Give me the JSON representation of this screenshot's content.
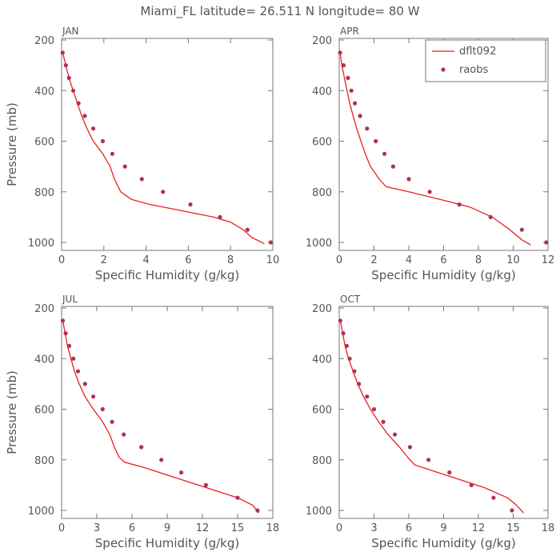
{
  "figure": {
    "title": "Miami_FL  latitude= 26.511 N longitude= 80 W",
    "xlabel": "Specific Humidity (g/kg)",
    "ylabel": "Pressure (mb)",
    "colors": {
      "model": "#e8201e",
      "obs": "#b0305a",
      "axis": "#777777",
      "text": "#555555"
    },
    "legend": {
      "model_label": "dflt092",
      "obs_label": "raobs",
      "panel": "APR",
      "position": "top-right"
    }
  },
  "chart_data": [
    {
      "type": "line",
      "panel": "JAN",
      "xlim": [
        0,
        10
      ],
      "xticks": [
        0,
        2,
        4,
        6,
        8,
        10
      ],
      "ylim": [
        1000,
        200
      ],
      "yticks": [
        200,
        400,
        600,
        800,
        1000
      ],
      "series": [
        {
          "name": "dflt092",
          "style": "line",
          "points": [
            [
              0.05,
              250
            ],
            [
              0.2,
              300
            ],
            [
              0.35,
              350
            ],
            [
              0.55,
              400
            ],
            [
              0.75,
              450
            ],
            [
              0.95,
              500
            ],
            [
              1.2,
              550
            ],
            [
              1.5,
              600
            ],
            [
              1.95,
              650
            ],
            [
              2.3,
              700
            ],
            [
              2.5,
              750
            ],
            [
              2.8,
              800
            ],
            [
              3.3,
              830
            ],
            [
              4.2,
              850
            ],
            [
              6,
              880
            ],
            [
              7.2,
              900
            ],
            [
              8.0,
              920
            ],
            [
              8.6,
              950
            ],
            [
              9.0,
              980
            ],
            [
              9.6,
              1005
            ]
          ]
        },
        {
          "name": "raobs",
          "style": "points",
          "points": [
            [
              0.05,
              250
            ],
            [
              0.2,
              300
            ],
            [
              0.35,
              350
            ],
            [
              0.55,
              400
            ],
            [
              0.8,
              450
            ],
            [
              1.1,
              500
            ],
            [
              1.5,
              550
            ],
            [
              1.95,
              600
            ],
            [
              2.4,
              650
            ],
            [
              3.0,
              700
            ],
            [
              3.8,
              750
            ],
            [
              4.8,
              800
            ],
            [
              6.1,
              850
            ],
            [
              7.5,
              900
            ],
            [
              8.8,
              950
            ],
            [
              9.9,
              1000
            ]
          ]
        }
      ]
    },
    {
      "type": "line",
      "panel": "APR",
      "xlim": [
        0,
        12
      ],
      "xticks": [
        0,
        2,
        4,
        6,
        8,
        10,
        12
      ],
      "ylim": [
        1000,
        200
      ],
      "yticks": [
        200,
        400,
        600,
        800,
        1000
      ],
      "series": [
        {
          "name": "dflt092",
          "style": "line",
          "points": [
            [
              0.05,
              250
            ],
            [
              0.15,
              300
            ],
            [
              0.3,
              350
            ],
            [
              0.45,
              400
            ],
            [
              0.6,
              450
            ],
            [
              0.8,
              500
            ],
            [
              1.0,
              550
            ],
            [
              1.25,
              600
            ],
            [
              1.5,
              650
            ],
            [
              1.8,
              700
            ],
            [
              2.3,
              750
            ],
            [
              2.7,
              780
            ],
            [
              4,
              800
            ],
            [
              5.8,
              830
            ],
            [
              7.5,
              860
            ],
            [
              8.8,
              900
            ],
            [
              9.8,
              950
            ],
            [
              10.5,
              990
            ],
            [
              11.0,
              1010
            ]
          ]
        },
        {
          "name": "raobs",
          "style": "points",
          "points": [
            [
              0.05,
              250
            ],
            [
              0.25,
              300
            ],
            [
              0.5,
              350
            ],
            [
              0.7,
              400
            ],
            [
              0.9,
              450
            ],
            [
              1.2,
              500
            ],
            [
              1.6,
              550
            ],
            [
              2.1,
              600
            ],
            [
              2.6,
              650
            ],
            [
              3.1,
              700
            ],
            [
              4.0,
              750
            ],
            [
              5.2,
              800
            ],
            [
              6.9,
              850
            ],
            [
              8.7,
              900
            ],
            [
              10.5,
              950
            ],
            [
              11.9,
              1000
            ]
          ]
        }
      ]
    },
    {
      "type": "line",
      "panel": "JUL",
      "xlim": [
        0,
        18
      ],
      "xticks": [
        0,
        3,
        6,
        9,
        12,
        15,
        18
      ],
      "ylim": [
        1000,
        200
      ],
      "yticks": [
        200,
        400,
        600,
        800,
        1000
      ],
      "series": [
        {
          "name": "dflt092",
          "style": "line",
          "points": [
            [
              0.1,
              250
            ],
            [
              0.3,
              300
            ],
            [
              0.5,
              350
            ],
            [
              0.8,
              400
            ],
            [
              1.1,
              450
            ],
            [
              1.5,
              500
            ],
            [
              2.0,
              550
            ],
            [
              2.7,
              600
            ],
            [
              3.5,
              650
            ],
            [
              4.1,
              700
            ],
            [
              4.5,
              750
            ],
            [
              4.9,
              790
            ],
            [
              5.4,
              810
            ],
            [
              7,
              830
            ],
            [
              9,
              860
            ],
            [
              11,
              890
            ],
            [
              13,
              920
            ],
            [
              15,
              950
            ],
            [
              16.3,
              980
            ],
            [
              16.8,
              1010
            ]
          ]
        },
        {
          "name": "raobs",
          "style": "points",
          "points": [
            [
              0.1,
              250
            ],
            [
              0.35,
              300
            ],
            [
              0.65,
              350
            ],
            [
              1.0,
              400
            ],
            [
              1.4,
              450
            ],
            [
              2.0,
              500
            ],
            [
              2.7,
              550
            ],
            [
              3.5,
              600
            ],
            [
              4.3,
              650
            ],
            [
              5.3,
              700
            ],
            [
              6.8,
              750
            ],
            [
              8.5,
              800
            ],
            [
              10.2,
              850
            ],
            [
              12.3,
              900
            ],
            [
              15.0,
              950
            ],
            [
              16.7,
              1000
            ]
          ]
        }
      ]
    },
    {
      "type": "line",
      "panel": "OCT",
      "xlim": [
        0,
        18
      ],
      "xticks": [
        0,
        3,
        6,
        9,
        12,
        15,
        18
      ],
      "ylim": [
        1000,
        200
      ],
      "yticks": [
        200,
        400,
        600,
        800,
        1000
      ],
      "series": [
        {
          "name": "dflt092",
          "style": "line",
          "points": [
            [
              0.1,
              250
            ],
            [
              0.3,
              300
            ],
            [
              0.5,
              350
            ],
            [
              0.8,
              400
            ],
            [
              1.2,
              450
            ],
            [
              1.6,
              500
            ],
            [
              2.1,
              550
            ],
            [
              2.7,
              600
            ],
            [
              3.4,
              650
            ],
            [
              4.2,
              700
            ],
            [
              5.2,
              750
            ],
            [
              5.9,
              790
            ],
            [
              6.5,
              820
            ],
            [
              8.5,
              850
            ],
            [
              10.5,
              880
            ],
            [
              12.5,
              910
            ],
            [
              14.5,
              950
            ],
            [
              15.3,
              980
            ],
            [
              15.9,
              1010
            ]
          ]
        },
        {
          "name": "raobs",
          "style": "points",
          "points": [
            [
              0.1,
              250
            ],
            [
              0.35,
              300
            ],
            [
              0.65,
              350
            ],
            [
              0.9,
              400
            ],
            [
              1.3,
              450
            ],
            [
              1.7,
              500
            ],
            [
              2.4,
              550
            ],
            [
              3.0,
              600
            ],
            [
              3.8,
              650
            ],
            [
              4.8,
              700
            ],
            [
              6.1,
              750
            ],
            [
              7.7,
              800
            ],
            [
              9.5,
              850
            ],
            [
              11.4,
              900
            ],
            [
              13.3,
              950
            ],
            [
              14.9,
              1000
            ]
          ]
        }
      ]
    }
  ]
}
